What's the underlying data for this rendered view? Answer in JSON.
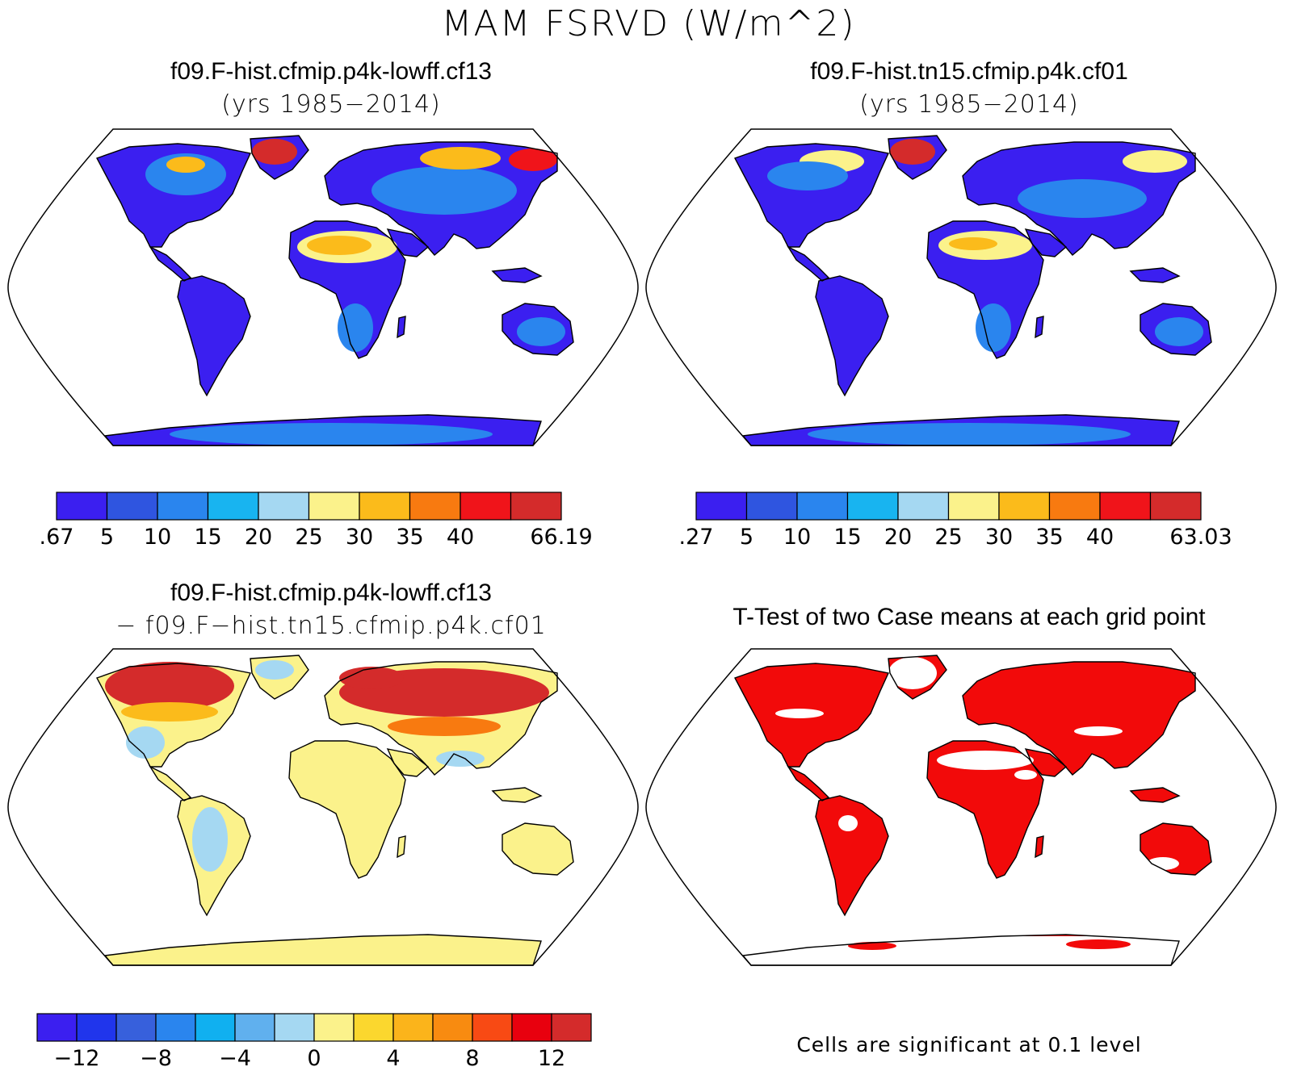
{
  "title": "MAM FSRVD (W/m^2)",
  "panels": {
    "case1": {
      "name": "f09.F-hist.cfmip.p4k-lowff.cf13",
      "years": "(yrs 1985−2014)"
    },
    "case2": {
      "name": "f09.F-hist.tn15.cfmip.p4k.cf01",
      "years": "(yrs 1985−2014)"
    },
    "diff": {
      "name": "f09.F-hist.cfmip.p4k-lowff.cf13",
      "minus": "− f09.F−hist.tn15.cfmip.p4k.cf01"
    },
    "ttest": {
      "name": "T-Test of two Case means at each grid point",
      "note": "Cells are significant at 0.1 level"
    }
  },
  "colorbars": {
    "case1": {
      "colors": [
        "#3b1ff0",
        "#2f55e0",
        "#2a85ee",
        "#18b4f0",
        "#a5d8f2",
        "#fbf28b",
        "#fbbb1b",
        "#f87a10",
        "#f0141a",
        "#d42b2b"
      ],
      "labels": [
        ".67",
        "5",
        "10",
        "15",
        "20",
        "25",
        "30",
        "35",
        "40",
        "66.19"
      ]
    },
    "case2": {
      "colors": [
        "#3b1ff0",
        "#2f55e0",
        "#2a85ee",
        "#18b4f0",
        "#a5d8f2",
        "#fbf28b",
        "#fbbb1b",
        "#f87a10",
        "#f0141a",
        "#d42b2b"
      ],
      "labels": [
        ".27",
        "5",
        "10",
        "15",
        "20",
        "25",
        "30",
        "35",
        "40",
        "63.03"
      ]
    },
    "diff": {
      "colors": [
        "#3b1ff0",
        "#2035ec",
        "#3760dc",
        "#2a85ee",
        "#10b0f0",
        "#60b0ee",
        "#a5d8f2",
        "#fbf28b",
        "#fbd72e",
        "#fbb41b",
        "#f88b10",
        "#f84a14",
        "#e8000e",
        "#d42b2b"
      ],
      "labels": [
        "−12",
        "−8",
        "−4",
        "0",
        "4",
        "8",
        "12"
      ]
    }
  },
  "colors": {
    "ocean": "#ffffff",
    "coast": "#000000",
    "land_base_abs": "#3b1ff0",
    "land_base_diff": "#fbf28b",
    "significant": "#f20a0a"
  }
}
